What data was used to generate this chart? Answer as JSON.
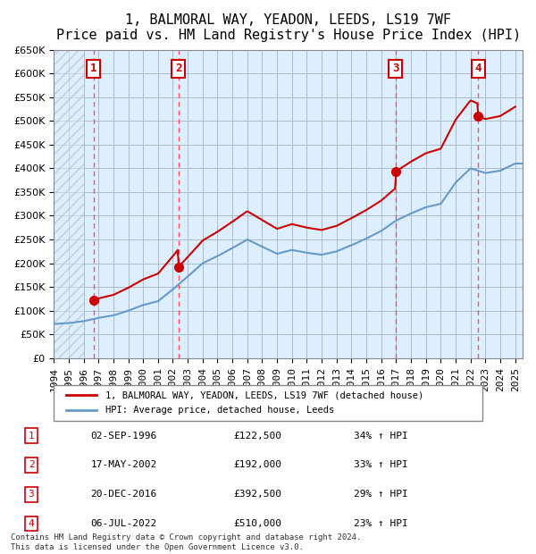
{
  "title": "1, BALMORAL WAY, YEADON, LEEDS, LS19 7WF",
  "subtitle": "Price paid vs. HM Land Registry's House Price Index (HPI)",
  "legend_line1": "1, BALMORAL WAY, YEADON, LEEDS, LS19 7WF (detached house)",
  "legend_line2": "HPI: Average price, detached house, Leeds",
  "transactions": [
    {
      "num": 1,
      "date": "02-SEP-1996",
      "year": 1996.67,
      "price": 122500,
      "pct": "34% ↑ HPI"
    },
    {
      "num": 2,
      "date": "17-MAY-2002",
      "year": 2002.37,
      "price": 192000,
      "pct": "33% ↑ HPI"
    },
    {
      "num": 3,
      "date": "20-DEC-2016",
      "year": 2016.96,
      "price": 392500,
      "pct": "29% ↑ HPI"
    },
    {
      "num": 4,
      "date": "06-JUL-2022",
      "year": 2022.51,
      "price": 510000,
      "pct": "23% ↑ HPI"
    }
  ],
  "footer1": "Contains HM Land Registry data © Crown copyright and database right 2024.",
  "footer2": "This data is licensed under the Open Government Licence v3.0.",
  "red_line_color": "#cc0000",
  "blue_line_color": "#6699cc",
  "dashed_line_color": "#ff4444",
  "grid_color": "#aabbcc",
  "bg_color": "#ddeeff",
  "plot_bg": "#ffffff",
  "ylim": [
    0,
    650000
  ],
  "ytick_step": 50000,
  "xmin": 1994,
  "xmax": 2025.5
}
